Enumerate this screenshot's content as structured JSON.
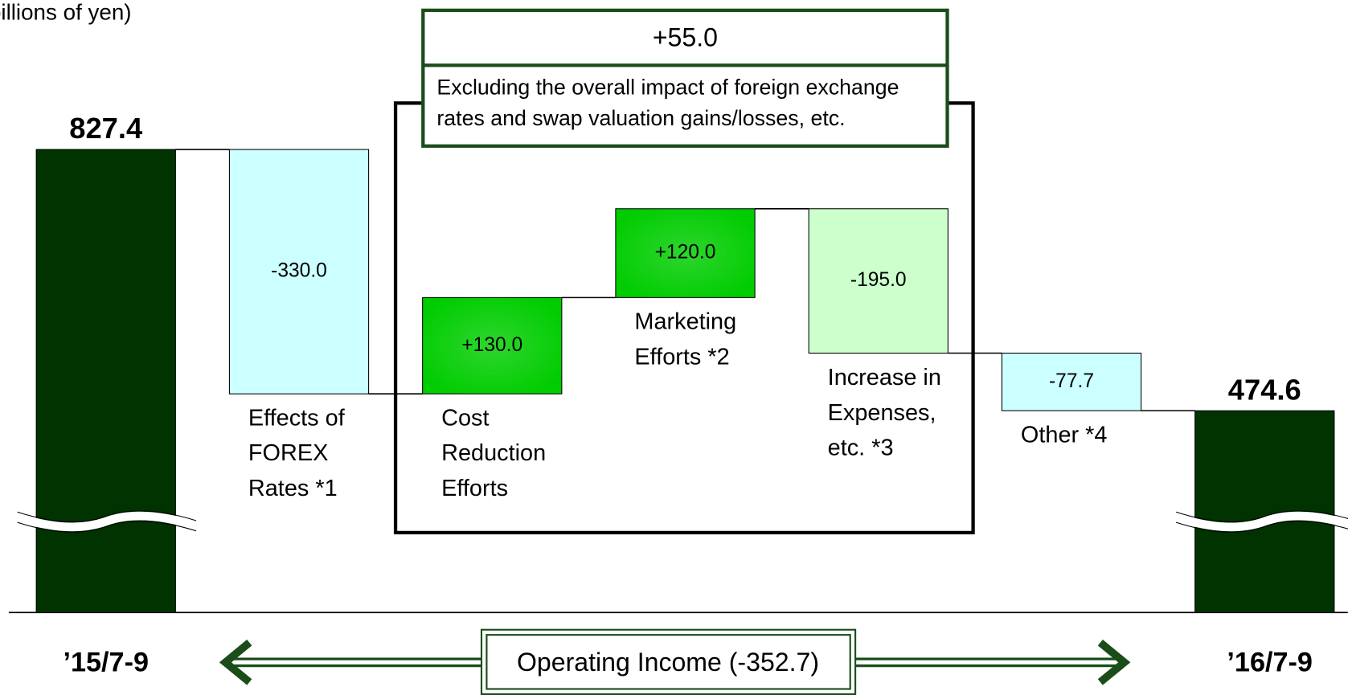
{
  "chart_data": {
    "type": "waterfall",
    "unit_label": "(billions of yen)",
    "categories": [
      "’15/7-9",
      "Effects of FOREX Rates *1",
      "Cost Reduction Efforts",
      "Marketing Efforts *2",
      "Increase in Expenses, etc. *3",
      "Other *4",
      "’16/7-9"
    ],
    "values": [
      827.4,
      -330.0,
      130.0,
      120.0,
      -195.0,
      -77.7,
      474.6
    ],
    "value_labels": [
      "827.4",
      "-330.0",
      "+130.0",
      "+120.0",
      "-195.0",
      "-77.7",
      "474.6"
    ],
    "colors": [
      "#003300",
      "#ccffff",
      "#00cc00",
      "#00cc00",
      "#ccffcc",
      "#ccffff",
      "#003300"
    ],
    "subtotal_label": "+55.0",
    "subtotal_note": "Excluding the overall impact of foreign exchange rates and swap valuation gains/losses, etc.",
    "footer": "Operating Income (-352.7)"
  }
}
